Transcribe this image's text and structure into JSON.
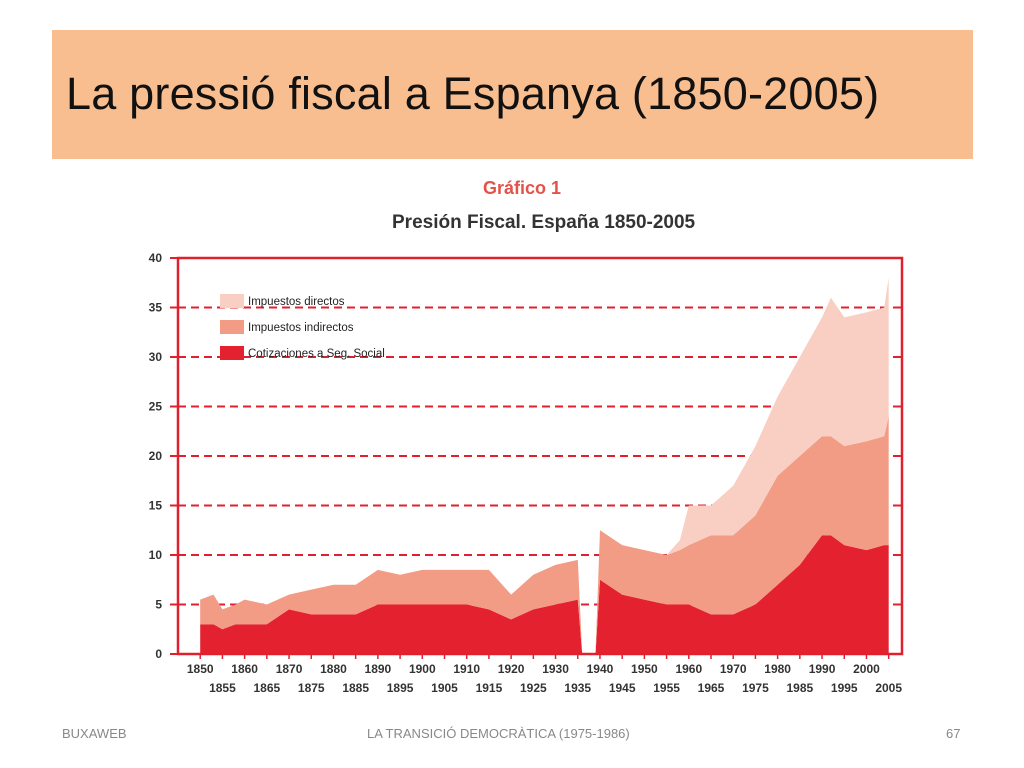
{
  "slide": {
    "title": "La pressió fiscal a Espanya (1850-2005)",
    "footer_left": "BUXAWEB",
    "footer_center": "LA TRANSICIÓ DEMOCRÀTICA (1975-1986)",
    "page_number": "67"
  },
  "chart_data": {
    "type": "area",
    "stacked": true,
    "kicker": "Gráfico 1",
    "title": "Presión Fiscal. España 1850-2005",
    "ylim": [
      0,
      40
    ],
    "y_ticks": [
      "0",
      "5",
      "10",
      "15",
      "20",
      "25",
      "30",
      "35",
      "40"
    ],
    "xlim": [
      1845,
      2008
    ],
    "x_ticks_top": [
      "1850",
      "1860",
      "1870",
      "1880",
      "1890",
      "1900",
      "1910",
      "1920",
      "1930",
      "1940",
      "1950",
      "1960",
      "1970",
      "1980",
      "1990",
      "2000"
    ],
    "x_ticks_bottom": [
      "1855",
      "1865",
      "1875",
      "1885",
      "1895",
      "1905",
      "1915",
      "1925",
      "1935",
      "1945",
      "1955",
      "1965",
      "1975",
      "1985",
      "1995",
      "2005"
    ],
    "grid": "horizontal dashed",
    "legend_position": "top-left",
    "colors": {
      "Impuestos directos": "#f9cfc3",
      "Impuestos indirectos": "#f29b85",
      "Cotizaciones a Seg. Social": "#e4222f",
      "frame": "#e0202f",
      "grid": "#e0202f"
    },
    "x": [
      1850,
      1853,
      1855,
      1858,
      1860,
      1865,
      1870,
      1875,
      1880,
      1885,
      1890,
      1895,
      1900,
      1905,
      1910,
      1915,
      1920,
      1925,
      1930,
      1935,
      1936,
      1937,
      1938,
      1939,
      1940,
      1945,
      1950,
      1955,
      1958,
      1960,
      1965,
      1970,
      1975,
      1980,
      1985,
      1990,
      1992,
      1995,
      2000,
      2004,
      2005
    ],
    "series": [
      {
        "name": "Cotizaciones a Seg. Social",
        "values": [
          3,
          3,
          2.5,
          3,
          3,
          3,
          4.5,
          4,
          4,
          4,
          5,
          5,
          5,
          5,
          5,
          4.5,
          3.5,
          4.5,
          5,
          5.5,
          0,
          0,
          0,
          0,
          7.5,
          6,
          5.5,
          5,
          5,
          5,
          4,
          4,
          5,
          7,
          9,
          12,
          12,
          11,
          10.5,
          11,
          11
        ]
      },
      {
        "name": "Impuestos indirectos",
        "values": [
          2.5,
          3,
          2,
          2,
          2.5,
          2,
          1.5,
          2.5,
          3,
          3,
          3.5,
          3,
          3.5,
          3.5,
          3.5,
          4,
          2.5,
          3.5,
          4,
          4,
          0,
          0,
          0,
          0,
          5,
          5,
          5,
          5,
          5.5,
          6,
          8,
          8,
          9,
          11,
          11,
          10,
          10,
          10,
          11,
          11,
          13
        ]
      },
      {
        "name": "Impuestos directos",
        "values": [
          0,
          0,
          0,
          0,
          0,
          0,
          0,
          0,
          0,
          0,
          0,
          0,
          0,
          0,
          0,
          0,
          0,
          0,
          0,
          0,
          0,
          0,
          0,
          0,
          0,
          0,
          0,
          0,
          1,
          4,
          3,
          5,
          7,
          8,
          10,
          12,
          14,
          13,
          13,
          13,
          14
        ]
      }
    ]
  }
}
